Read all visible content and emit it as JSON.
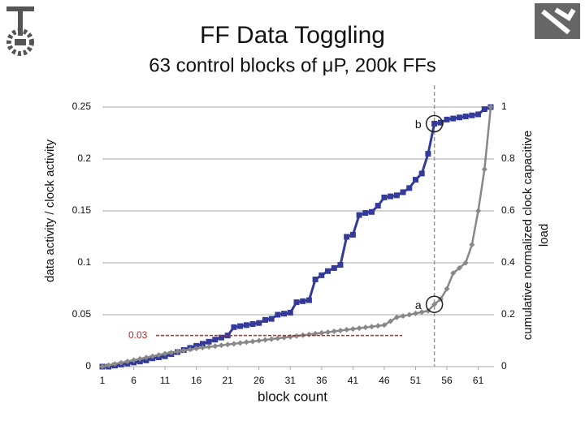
{
  "chart_data": {
    "type": "line",
    "title": "FF Data Toggling",
    "subtitle": "63 control blocks of μP, 200k FFs",
    "xlabel": "block count",
    "ylabel": "data activity / clock activity",
    "y2label": [
      "cumulative normalized clock capacitive",
      "load"
    ],
    "x": [
      1,
      2,
      3,
      4,
      5,
      6,
      7,
      8,
      9,
      10,
      11,
      12,
      13,
      14,
      15,
      16,
      17,
      18,
      19,
      20,
      21,
      22,
      23,
      24,
      25,
      26,
      27,
      28,
      29,
      30,
      31,
      32,
      33,
      34,
      35,
      36,
      37,
      38,
      39,
      40,
      41,
      42,
      43,
      44,
      45,
      46,
      47,
      48,
      49,
      50,
      51,
      52,
      53,
      54,
      55,
      56,
      57,
      58,
      59,
      60,
      61,
      62,
      63
    ],
    "series": [
      {
        "color": "#333a99",
        "values": [
          0,
          0,
          0.001,
          0.002,
          0.003,
          0.004,
          0.005,
          0.006,
          0.008,
          0.009,
          0.01,
          0.012,
          0.014,
          0.016,
          0.018,
          0.02,
          0.022,
          0.024,
          0.026,
          0.028,
          0.03,
          0.038,
          0.039,
          0.04,
          0.041,
          0.042,
          0.045,
          0.046,
          0.05,
          0.051,
          0.052,
          0.062,
          0.063,
          0.064,
          0.084,
          0.088,
          0.092,
          0.095,
          0.098,
          0.125,
          0.127,
          0.146,
          0.148,
          0.149,
          0.155,
          0.163,
          0.164,
          0.165,
          0.168,
          0.172,
          0.18,
          0.186,
          0.205,
          0.234,
          0.235,
          0.238,
          0.239,
          0.24,
          0.241,
          0.242,
          0.243,
          0.248,
          0.25
        ]
      },
      {
        "color": "#888888",
        "axis": "y2",
        "values": [
          0,
          0.005,
          0.01,
          0.015,
          0.02,
          0.025,
          0.03,
          0.035,
          0.04,
          0.045,
          0.05,
          0.054,
          0.058,
          0.062,
          0.066,
          0.07,
          0.073,
          0.076,
          0.079,
          0.082,
          0.085,
          0.088,
          0.091,
          0.094,
          0.097,
          0.1,
          0.103,
          0.106,
          0.109,
          0.112,
          0.115,
          0.118,
          0.121,
          0.124,
          0.127,
          0.13,
          0.133,
          0.136,
          0.139,
          0.142,
          0.145,
          0.148,
          0.151,
          0.154,
          0.157,
          0.16,
          0.175,
          0.19,
          0.195,
          0.2,
          0.205,
          0.21,
          0.215,
          0.24,
          0.26,
          0.3,
          0.36,
          0.38,
          0.4,
          0.47,
          0.6,
          0.76,
          1.0
        ]
      }
    ],
    "xlim": [
      1,
      63
    ],
    "xticks": [
      1,
      6,
      11,
      16,
      21,
      26,
      31,
      36,
      41,
      46,
      51,
      56,
      61
    ],
    "ylim": [
      0,
      0.25
    ],
    "yticks": [
      0,
      0.05,
      0.1,
      0.15,
      0.2,
      0.25
    ],
    "y2lim": [
      0,
      1
    ],
    "y2ticks": [
      0,
      0.2,
      0.4,
      0.6,
      0.8,
      1
    ],
    "hline": 0.03,
    "vline": 54,
    "annotations": [
      {
        "text": "b",
        "x": 54,
        "series": 0
      },
      {
        "text": "a",
        "x": 54,
        "series": 1
      }
    ]
  }
}
